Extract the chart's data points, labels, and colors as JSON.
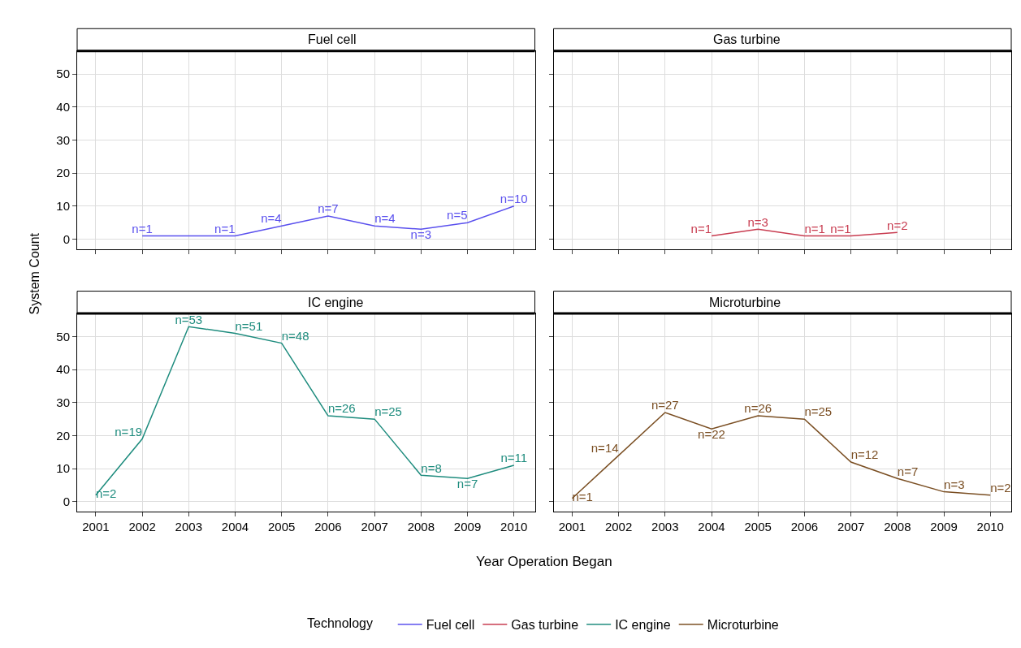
{
  "chart_data": [
    {
      "type": "line",
      "title": "Fuel cell",
      "ylabel": "System Count",
      "legend_title": "Technology",
      "legend": "bottom",
      "grid": true,
      "tick_labels": "y",
      "xlim": [
        2000.6,
        2010.45
      ],
      "xticks": [
        2001,
        2002,
        2003,
        2004,
        2005,
        2006,
        2007,
        2008,
        2009,
        2010
      ],
      "ylim": [
        -3,
        57
      ],
      "yticks": [
        0,
        10,
        20,
        30,
        40,
        50
      ],
      "x": [
        2002,
        2004,
        2005,
        2006,
        2007,
        2008,
        2009,
        2010
      ],
      "series": [
        {
          "name": "Fuel cell",
          "color": "#5a50ee",
          "values": [
            1,
            1,
            4,
            7,
            4,
            3,
            5,
            10
          ],
          "value_labels": [
            "n=1",
            "n=1",
            "n=4",
            "n=7",
            "n=4",
            "n=3",
            "n=5",
            "n=10"
          ]
        }
      ]
    },
    {
      "type": "line",
      "title": "Gas turbine",
      "legend": "bottom",
      "grid": true,
      "tick_labels": false,
      "xlim": [
        2000.6,
        2010.45
      ],
      "xticks": [
        2001,
        2002,
        2003,
        2004,
        2005,
        2006,
        2007,
        2008,
        2009,
        2010
      ],
      "ylim": [
        -3,
        57
      ],
      "yticks": [
        0,
        10,
        20,
        30,
        40,
        50
      ],
      "x": [
        2004,
        2005,
        2006,
        2007,
        2008
      ],
      "series": [
        {
          "name": "Gas turbine",
          "color": "#c83c50",
          "values": [
            1,
            3,
            1,
            1,
            2
          ],
          "value_labels": [
            "n=1",
            "n=3",
            "n=1",
            "n=1",
            "n=2"
          ]
        }
      ]
    },
    {
      "type": "line",
      "title": "IC engine",
      "xlabel": "Year Operation Began",
      "legend": "bottom",
      "grid": true,
      "xlim": [
        2000.6,
        2010.45
      ],
      "xticks": [
        2001,
        2002,
        2003,
        2004,
        2005,
        2006,
        2007,
        2008,
        2009,
        2010
      ],
      "ylim": [
        -3,
        57
      ],
      "yticks": [
        0,
        10,
        20,
        30,
        40,
        50
      ],
      "x": [
        2001,
        2002,
        2003,
        2004,
        2005,
        2006,
        2007,
        2008,
        2009,
        2010
      ],
      "series": [
        {
          "name": "IC engine",
          "color": "#1e8c7e",
          "values": [
            2,
            19,
            53,
            51,
            48,
            26,
            25,
            8,
            7,
            11
          ],
          "value_labels": [
            "n=2",
            "n=19",
            "n=53",
            "n=51",
            "n=48",
            "n=26",
            "n=25",
            "n=8",
            "n=7",
            "n=11"
          ]
        }
      ]
    },
    {
      "type": "line",
      "title": "Microturbine",
      "legend": "bottom",
      "grid": true,
      "tick_labels": "x",
      "xlim": [
        2000.6,
        2010.45
      ],
      "xticks": [
        2001,
        2002,
        2003,
        2004,
        2005,
        2006,
        2007,
        2008,
        2009,
        2010
      ],
      "ylim": [
        -3,
        57
      ],
      "yticks": [
        0,
        10,
        20,
        30,
        40,
        50
      ],
      "x": [
        2001,
        2002,
        2003,
        2004,
        2005,
        2006,
        2007,
        2008,
        2009,
        2010
      ],
      "series": [
        {
          "name": "Microturbine",
          "color": "#7a4e22",
          "values": [
            1,
            14,
            27,
            22,
            26,
            25,
            12,
            7,
            3,
            2
          ],
          "value_labels": [
            "n=1",
            "n=14",
            "n=27",
            "n=22",
            "n=26",
            "n=25",
            "n=12",
            "n=7",
            "n=3",
            "n=2"
          ]
        }
      ]
    }
  ]
}
